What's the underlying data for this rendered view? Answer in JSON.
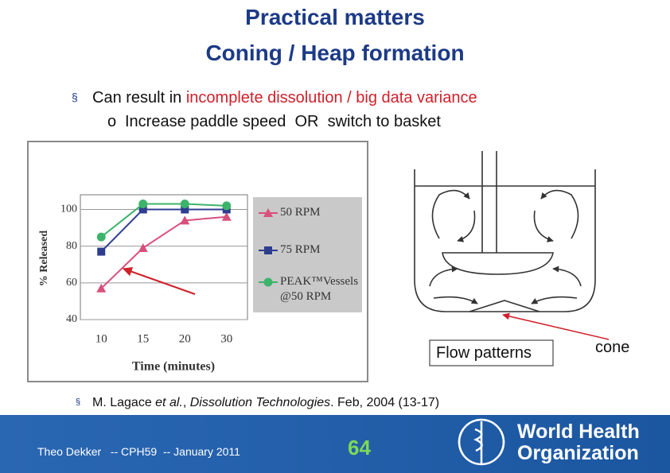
{
  "header": {
    "title": [
      "Practical matters",
      "Coning / Heap formation"
    ]
  },
  "bullets": [
    {
      "text": "Can result in ",
      "highlight": "incomplete dissolution / big data variance",
      "sub": "Increase paddle speed  OR  switch to basket"
    }
  ],
  "chart_data": {
    "type": "line",
    "xlabel": "Time (minutes)",
    "ylabel": "% Released",
    "categories": [
      "10",
      "15",
      "20",
      "30"
    ],
    "series": [
      {
        "name": "50 RPM",
        "color": "#d9507c",
        "marker": "triangle",
        "values": [
          57,
          79,
          94,
          96
        ]
      },
      {
        "name": "75 RPM",
        "color": "#2e3d8f",
        "marker": "square",
        "values": [
          77,
          100,
          100,
          100
        ]
      },
      {
        "name": "PEAK™Vessels @50 RPM",
        "color": "#3cb46a",
        "marker": "circle",
        "values": [
          85,
          103,
          103,
          102
        ]
      }
    ],
    "ylim": [
      40,
      108
    ],
    "yticks": [
      40,
      60,
      80,
      100
    ],
    "grid": true,
    "legend": "right"
  },
  "figure": {
    "caption": "Flow patterns",
    "callout": "cone"
  },
  "reference": {
    "author": "M. Lagace ",
    "etal": "et al.",
    "sep": ", ",
    "journal": "Dissolution Technologies",
    "rest": ". Feb, 2004 (13-17)"
  },
  "footer": {
    "author": "Theo Dekker   -- CPH59  -- January 2011",
    "page": "64",
    "org": [
      "World Health",
      "Organization"
    ]
  }
}
